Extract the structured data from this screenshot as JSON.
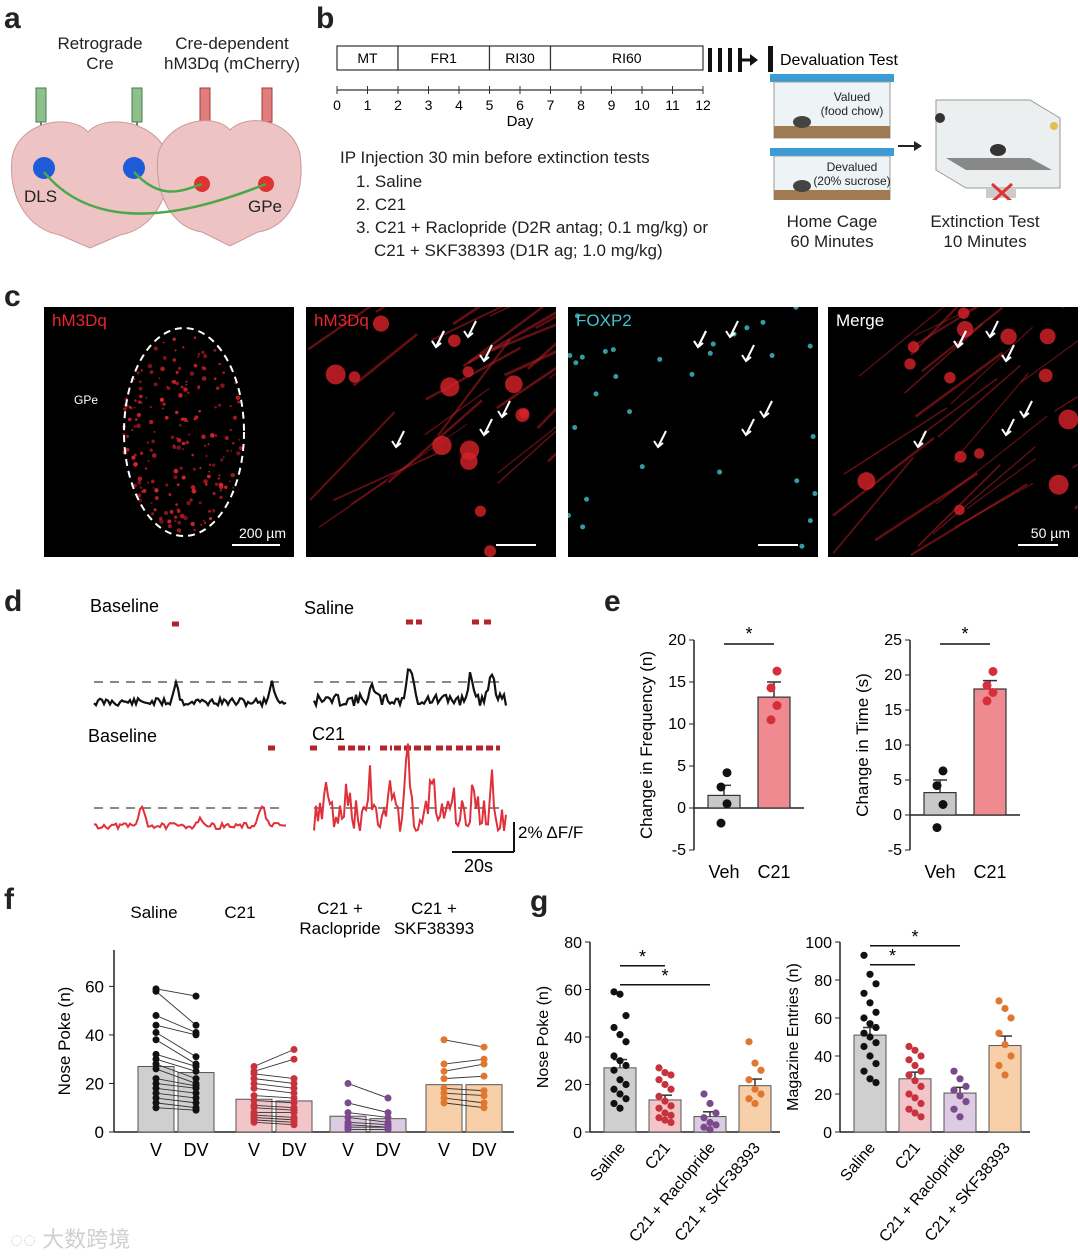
{
  "panels": [
    "a",
    "b",
    "c",
    "d",
    "e",
    "f",
    "g"
  ],
  "a": {
    "label_retro": "Retrograde\nCre",
    "label_cre": "Cre-dependent\nhM3Dq (mCherry)",
    "dls": "DLS",
    "gpe": "GPe"
  },
  "b": {
    "phases": [
      "MT",
      "FR1",
      "RI30",
      "RI60"
    ],
    "devaluation": "Devaluation Test",
    "days": [
      "0",
      "1",
      "2",
      "3",
      "4",
      "5",
      "6",
      "7",
      "8",
      "9",
      "10",
      "11",
      "12"
    ],
    "day_label": "Day",
    "ip_title": "IP Injection 30 min before extinction tests",
    "ip_items": [
      "1. Saline",
      "2. C21",
      "3. C21 + Raclopride (D2R antag; 0.1 mg/kg) or",
      "C21 + SKF38393 (D1R ag; 1.0 mg/kg)"
    ],
    "valued": "Valued\n(food chow)",
    "devalued": "Devalued\n(20% sucrose)",
    "home_cage": "Home Cage\n60 Minutes",
    "extinction": "Extinction Test\n10 Minutes"
  },
  "c": {
    "tiles": [
      {
        "label": "hM3Dq",
        "color": "#e8262d",
        "note": "GPe",
        "scale": "200 µm"
      },
      {
        "label": "hM3Dq",
        "color": "#e8262d",
        "note": "",
        "scale": ""
      },
      {
        "label": "FOXP2",
        "color": "#3fc3c9",
        "note": "",
        "scale": ""
      },
      {
        "label": "Merge",
        "color": "#ffffff",
        "note": "",
        "scale": "50 µm"
      }
    ]
  },
  "d": {
    "baseline1": "Baseline",
    "saline": "Saline",
    "baseline2": "Baseline",
    "c21": "C21",
    "scale_y": "2% ΔF/F",
    "scale_x": "20s"
  },
  "e": {
    "colors": {
      "veh": "#c8c8c8",
      "c21": "#ee8a90",
      "c21_dot": "#d62f3b"
    },
    "sig": "*",
    "charts": [
      {
        "ylabel": "Change in Frequency (n)",
        "categories": [
          "Veh",
          "C21"
        ],
        "means": [
          1.5,
          13.2
        ],
        "sem": [
          1.2,
          1.8
        ],
        "points": [
          [
            -1.8,
            0.5,
            2.5,
            4.2
          ],
          [
            10.5,
            12.2,
            14.3,
            16.3
          ]
        ],
        "ylim": [
          -5,
          20
        ],
        "ticks": [
          "-5",
          "0",
          "5",
          "10",
          "15",
          "20"
        ]
      },
      {
        "ylabel": "Change in Time (s)",
        "categories": [
          "Veh",
          "C21"
        ],
        "means": [
          3.2,
          18.0
        ],
        "sem": [
          1.8,
          1.2
        ],
        "points": [
          [
            -1.8,
            1.5,
            4.2,
            6.3
          ],
          [
            16.3,
            17.5,
            18.5,
            20.5
          ]
        ],
        "ylim": [
          -5,
          25
        ],
        "ticks": [
          "-5",
          "0",
          "5",
          "10",
          "15",
          "20",
          "25"
        ]
      }
    ]
  },
  "f": {
    "ylabel": "Nose  Poke  (n)",
    "groups": [
      "Saline",
      "C21",
      "C21 +\nRaclopride",
      "C21 +\nSKF38393"
    ],
    "xticks": [
      "V",
      "DV",
      "V",
      "DV",
      "V",
      "DV",
      "V",
      "DV"
    ],
    "yticks": [
      "0",
      "20",
      "40",
      "60"
    ],
    "ylim": [
      0,
      75
    ],
    "means": [
      [
        27,
        24.5
      ],
      [
        13.5,
        12.8
      ],
      [
        6.5,
        5.5
      ],
      [
        19.5,
        19.5
      ]
    ],
    "colors": [
      {
        "fill": "#cfcfcf",
        "dot": "#111111"
      },
      {
        "fill": "#f2c5c8",
        "dot": "#c8323c"
      },
      {
        "fill": "#dccbe3",
        "dot": "#7a4a8d"
      },
      {
        "fill": "#f7cfa8",
        "dot": "#e0772f"
      }
    ],
    "pairs": [
      [
        [
          59,
          56
        ],
        [
          58,
          44
        ],
        [
          48,
          41
        ],
        [
          44,
          40
        ],
        [
          41,
          31
        ],
        [
          38,
          28
        ],
        [
          32,
          27
        ],
        [
          30,
          25
        ],
        [
          28,
          22
        ],
        [
          26,
          20
        ],
        [
          22,
          19
        ],
        [
          20,
          18
        ],
        [
          18,
          16
        ],
        [
          16,
          14
        ],
        [
          14,
          12
        ],
        [
          12,
          10
        ],
        [
          10,
          9
        ]
      ],
      [
        [
          27,
          34
        ],
        [
          25,
          30
        ],
        [
          24,
          22
        ],
        [
          22,
          20
        ],
        [
          20,
          18
        ],
        [
          18,
          16
        ],
        [
          15,
          14
        ],
        [
          13,
          12
        ],
        [
          11,
          10
        ],
        [
          10,
          9
        ],
        [
          8,
          8
        ],
        [
          7,
          6
        ],
        [
          6,
          5
        ],
        [
          5,
          4
        ],
        [
          4,
          3
        ]
      ],
      [
        [
          20,
          14
        ],
        [
          12,
          8
        ],
        [
          8,
          6
        ],
        [
          6,
          4
        ],
        [
          4,
          3
        ],
        [
          3,
          2
        ],
        [
          2,
          2
        ],
        [
          1,
          1
        ]
      ],
      [
        [
          38,
          35
        ],
        [
          28,
          30
        ],
        [
          25,
          28
        ],
        [
          22,
          23
        ],
        [
          18,
          17
        ],
        [
          16,
          15
        ],
        [
          14,
          12
        ],
        [
          12,
          10
        ]
      ]
    ]
  },
  "g": {
    "sig": "*",
    "categories": [
      "Saline",
      "C21",
      "C21 + Raclopride",
      "C21 + SKF38393"
    ],
    "charts": [
      {
        "ylabel": "Nose Poke (n)",
        "means": [
          27,
          13.5,
          6.5,
          19.5
        ],
        "sem": [
          3.5,
          2.0,
          2.0,
          2.8
        ],
        "ylim": [
          0,
          80
        ],
        "ticks": [
          "0",
          "20",
          "40",
          "60",
          "80"
        ],
        "points": [
          [
            59,
            58,
            49,
            44,
            41,
            38,
            32,
            30,
            28,
            26,
            22,
            20,
            18,
            16,
            14,
            12,
            10
          ],
          [
            27,
            25,
            24,
            22,
            20,
            18,
            15,
            13,
            11,
            10,
            8,
            7,
            6,
            5,
            4
          ],
          [
            16,
            12,
            8,
            6,
            4,
            3,
            2,
            1
          ],
          [
            38,
            29,
            26,
            22,
            18,
            16,
            14,
            12
          ]
        ]
      },
      {
        "ylabel": "Magazine Entries (n)",
        "means": [
          51,
          28,
          20.5,
          45.5
        ],
        "sem": [
          4,
          3.5,
          3,
          5
        ],
        "ylim": [
          0,
          100
        ],
        "ticks": [
          "0",
          "20",
          "40",
          "60",
          "80",
          "100"
        ],
        "points": [
          [
            93,
            83,
            78,
            73,
            68,
            63,
            60,
            57,
            55,
            52,
            50,
            47,
            45,
            40,
            36,
            32,
            28,
            26
          ],
          [
            45,
            43,
            40,
            38,
            35,
            32,
            30,
            27,
            24,
            20,
            18,
            15,
            12,
            10,
            8
          ],
          [
            32,
            28,
            24,
            22,
            19,
            16,
            12,
            8
          ],
          [
            69,
            65,
            60,
            52,
            46,
            40,
            35,
            30
          ]
        ]
      }
    ]
  },
  "watermark": "大数跨境"
}
